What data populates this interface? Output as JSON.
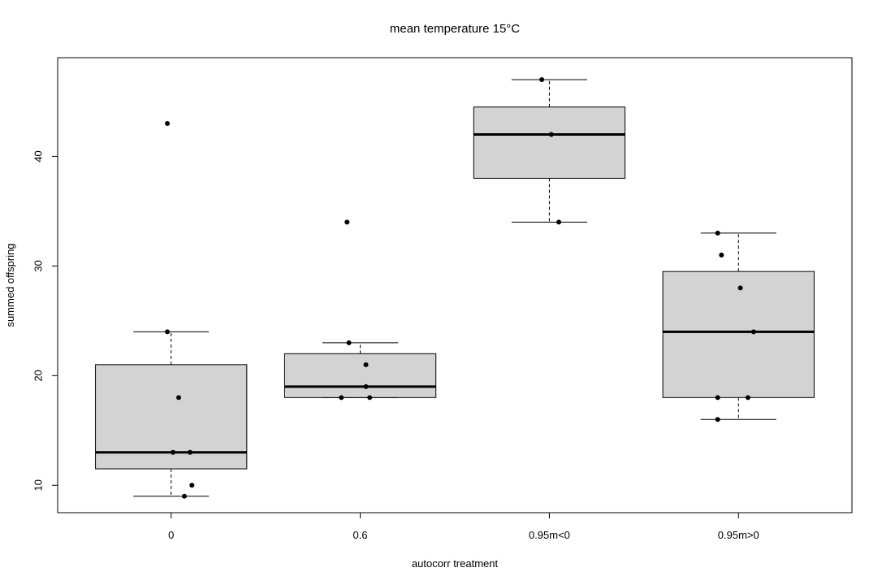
{
  "chart_data": {
    "type": "boxplot",
    "title": "mean temperature 15°C",
    "xlabel": "autocorr treatment",
    "ylabel": "summed offspring",
    "ylim": [
      7.5,
      49
    ],
    "yticks": [
      10,
      20,
      30,
      40
    ],
    "grid": false,
    "colors": {
      "box_fill": "#d3d3d3",
      "stroke": "#000000",
      "points": "#000000"
    },
    "categories": [
      "0",
      "0.6",
      "0.95m<0",
      "0.95m>0"
    ],
    "boxes": [
      {
        "category": "0",
        "whisker_low": 9,
        "q1": 11.5,
        "median": 13,
        "q3": 21,
        "whisker_high": 24
      },
      {
        "category": "0.6",
        "whisker_low": 18,
        "q1": 18,
        "median": 19,
        "q3": 22,
        "whisker_high": 23
      },
      {
        "category": "0.95m<0",
        "whisker_low": 34,
        "q1": 38,
        "median": 42,
        "q3": 44.5,
        "whisker_high": 47
      },
      {
        "category": "0.95m>0",
        "whisker_low": 16,
        "q1": 18,
        "median": 24,
        "q3": 29.5,
        "whisker_high": 33
      }
    ],
    "points": [
      {
        "category": "0",
        "jitter": -0.02,
        "y": 43
      },
      {
        "category": "0",
        "jitter": -0.02,
        "y": 24
      },
      {
        "category": "0",
        "jitter": 0.04,
        "y": 18
      },
      {
        "category": "0",
        "jitter": 0.01,
        "y": 13
      },
      {
        "category": "0",
        "jitter": 0.1,
        "y": 13
      },
      {
        "category": "0",
        "jitter": 0.11,
        "y": 10
      },
      {
        "category": "0",
        "jitter": 0.07,
        "y": 9
      },
      {
        "category": "0.6",
        "jitter": -0.07,
        "y": 34
      },
      {
        "category": "0.6",
        "jitter": -0.06,
        "y": 23
      },
      {
        "category": "0.6",
        "jitter": 0.03,
        "y": 21
      },
      {
        "category": "0.6",
        "jitter": 0.03,
        "y": 19
      },
      {
        "category": "0.6",
        "jitter": -0.1,
        "y": 18
      },
      {
        "category": "0.6",
        "jitter": 0.05,
        "y": 18
      },
      {
        "category": "0.95m<0",
        "jitter": -0.04,
        "y": 47
      },
      {
        "category": "0.95m<0",
        "jitter": 0.01,
        "y": 42
      },
      {
        "category": "0.95m<0",
        "jitter": 0.05,
        "y": 34
      },
      {
        "category": "0.95m>0",
        "jitter": -0.11,
        "y": 33
      },
      {
        "category": "0.95m>0",
        "jitter": -0.09,
        "y": 31
      },
      {
        "category": "0.95m>0",
        "jitter": 0.01,
        "y": 28
      },
      {
        "category": "0.95m>0",
        "jitter": 0.08,
        "y": 24
      },
      {
        "category": "0.95m>0",
        "jitter": -0.11,
        "y": 18
      },
      {
        "category": "0.95m>0",
        "jitter": 0.05,
        "y": 18
      },
      {
        "category": "0.95m>0",
        "jitter": -0.11,
        "y": 16
      }
    ]
  }
}
